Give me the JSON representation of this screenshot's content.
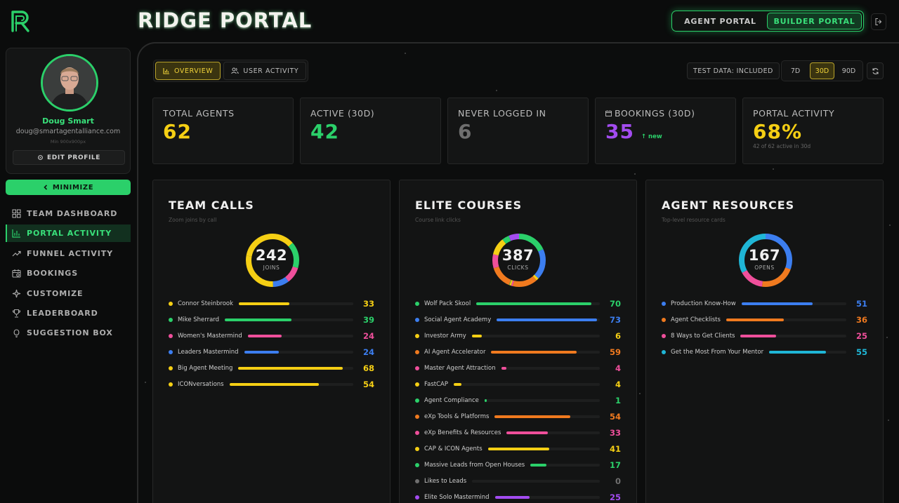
{
  "app": {
    "title": "RIDGE PORTAL"
  },
  "portal_switch": {
    "tabs": [
      "AGENT PORTAL",
      "BUILDER PORTAL"
    ],
    "active": 1
  },
  "profile": {
    "name": "Doug Smart",
    "email": "doug@smartagentalliance.com",
    "image_hint": "Min 900x900px",
    "edit_label": "EDIT PROFILE"
  },
  "sidebar": {
    "minimize_label": "MINIMIZE",
    "items": [
      {
        "label": "TEAM DASHBOARD",
        "icon": "grid-icon"
      },
      {
        "label": "PORTAL ACTIVITY",
        "icon": "bar-chart-icon"
      },
      {
        "label": "FUNNEL ACTIVITY",
        "icon": "trend-icon"
      },
      {
        "label": "BOOKINGS",
        "icon": "calendar-icon"
      },
      {
        "label": "CUSTOMIZE",
        "icon": "sparkle-icon"
      },
      {
        "label": "LEADERBOARD",
        "icon": "trophy-icon"
      },
      {
        "label": "SUGGESTION BOX",
        "icon": "bulb-icon"
      }
    ],
    "active": 1
  },
  "view_tabs": [
    {
      "label": "OVERVIEW"
    },
    {
      "label": "USER ACTIVITY"
    }
  ],
  "test_data_label": "TEST DATA: INCLUDED",
  "ranges": [
    "7D",
    "30D",
    "90D"
  ],
  "active_range": 1,
  "stats": [
    {
      "label": "TOTAL AGENTS",
      "value": "62",
      "color": "#f5cf14"
    },
    {
      "label": "ACTIVE (30D)",
      "value": "42",
      "color": "#2bd06a"
    },
    {
      "label": "NEVER LOGGED IN",
      "value": "6",
      "color": "#6f6f6f"
    },
    {
      "label": "BOOKINGS (30D)",
      "value": "35",
      "color": "#a34cf0",
      "note": "↑ new"
    },
    {
      "label": "PORTAL ACTIVITY",
      "value": "68%",
      "color": "#f5cf14",
      "sub": "42 of 62 active in 30d"
    }
  ],
  "panels": [
    {
      "title": "TEAM CALLS",
      "subtitle": "Zoom joins by call",
      "total": "242",
      "caption": "JOINS",
      "rows": [
        {
          "label": "Connor Steinbrook",
          "value": 33,
          "color": "#f5cf14"
        },
        {
          "label": "Mike Sherrard",
          "value": 39,
          "color": "#2bd06a"
        },
        {
          "label": "Women's Mastermind",
          "value": 24,
          "color": "#ef4f9b"
        },
        {
          "label": "Leaders Mastermind",
          "value": 24,
          "color": "#3c7ef0"
        },
        {
          "label": "Big Agent Meeting",
          "value": 68,
          "color": "#f5cf14"
        },
        {
          "label": "ICONversations",
          "value": 54,
          "color": "#f5cf14"
        }
      ]
    },
    {
      "title": "ELITE COURSES",
      "subtitle": "Course link clicks",
      "total": "387",
      "caption": "CLICKS",
      "rows": [
        {
          "label": "Wolf Pack Skool",
          "value": 70,
          "color": "#2bd06a"
        },
        {
          "label": "Social Agent Academy",
          "value": 73,
          "color": "#3c7ef0"
        },
        {
          "label": "Investor Army",
          "value": 6,
          "color": "#f5cf14"
        },
        {
          "label": "AI Agent Accelerator",
          "value": 59,
          "color": "#f07a1f"
        },
        {
          "label": "Master Agent Attraction",
          "value": 4,
          "color": "#ef4f9b"
        },
        {
          "label": "FastCAP",
          "value": 4,
          "color": "#f5cf14"
        },
        {
          "label": "Agent Compliance",
          "value": 1,
          "color": "#2bd06a"
        },
        {
          "label": "eXp Tools & Platforms",
          "value": 54,
          "color": "#f07a1f"
        },
        {
          "label": "eXp Benefits & Resources",
          "value": 33,
          "color": "#ef4f9b"
        },
        {
          "label": "CAP & ICON Agents",
          "value": 41,
          "color": "#f5cf14"
        },
        {
          "label": "Massive Leads from Open Houses",
          "value": 17,
          "color": "#2bd06a"
        },
        {
          "label": "Likes to Leads",
          "value": 0,
          "color": "#6f6f6f"
        },
        {
          "label": "Elite Solo Mastermind",
          "value": 25,
          "color": "#a34cf0"
        }
      ]
    },
    {
      "title": "AGENT RESOURCES",
      "subtitle": "Top-level resource cards",
      "total": "167",
      "caption": "OPENS",
      "rows": [
        {
          "label": "Production Know-How",
          "value": 51,
          "color": "#3c7ef0"
        },
        {
          "label": "Agent Checklists",
          "value": 36,
          "color": "#f07a1f"
        },
        {
          "label": "8 Ways to Get Clients",
          "value": 25,
          "color": "#ef4f9b"
        },
        {
          "label": "Get the Most From Your Mentor",
          "value": 55,
          "color": "#1fb6d6"
        }
      ]
    }
  ]
}
